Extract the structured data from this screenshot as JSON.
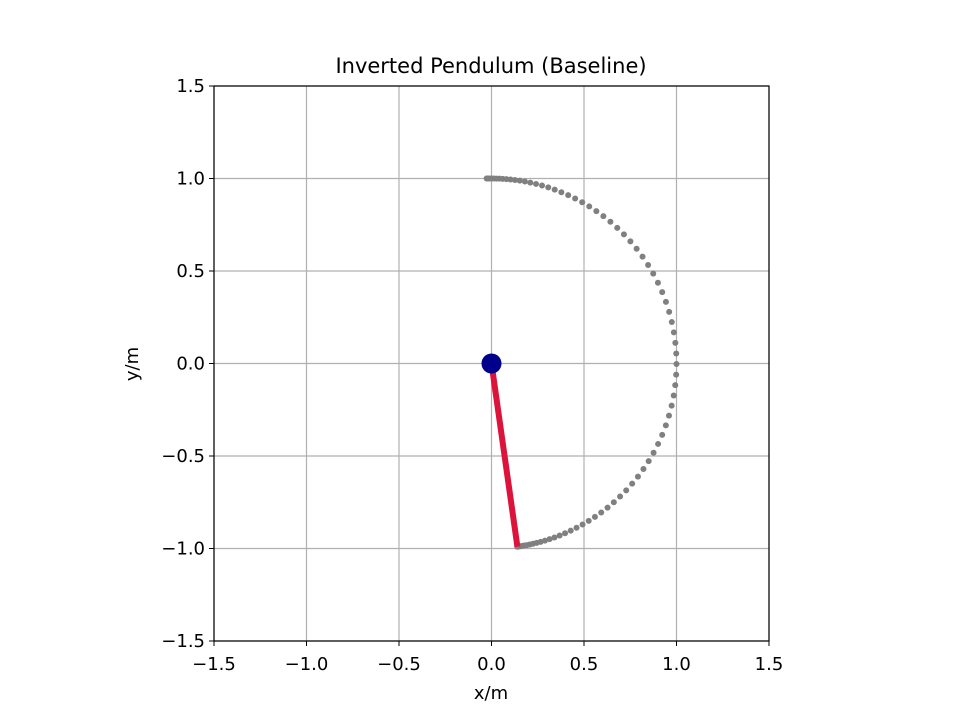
{
  "chart_data": {
    "type": "scatter",
    "title": "Inverted Pendulum (Baseline)",
    "xlabel": "x/m",
    "ylabel": "y/m",
    "xlim": [
      -1.5,
      1.5
    ],
    "ylim": [
      -1.5,
      1.5
    ],
    "xticks": [
      -1.5,
      -1.0,
      -0.5,
      0.0,
      0.5,
      1.0,
      1.5
    ],
    "yticks": [
      -1.5,
      -1.0,
      -0.5,
      0.0,
      0.5,
      1.0,
      1.5
    ],
    "xtick_labels": [
      "−1.5",
      "−1.0",
      "−0.5",
      "0.0",
      "0.5",
      "1.0",
      "1.5"
    ],
    "ytick_labels": [
      "−1.5",
      "−1.0",
      "−0.5",
      "0.0",
      "0.5",
      "1.0",
      "1.5"
    ],
    "grid": true,
    "pivot": {
      "x": 0.0,
      "y": 0.0,
      "color": "#00008b"
    },
    "rod": {
      "x": [
        0.0,
        0.14
      ],
      "y": [
        0.0,
        -0.99
      ],
      "color": "#dc143c"
    },
    "trajectory": {
      "color": "#808080",
      "length": 1.0,
      "angle_start_deg": 91.5,
      "angle_end_deg": -82.0,
      "count": 84,
      "x": [],
      "y": []
    }
  }
}
